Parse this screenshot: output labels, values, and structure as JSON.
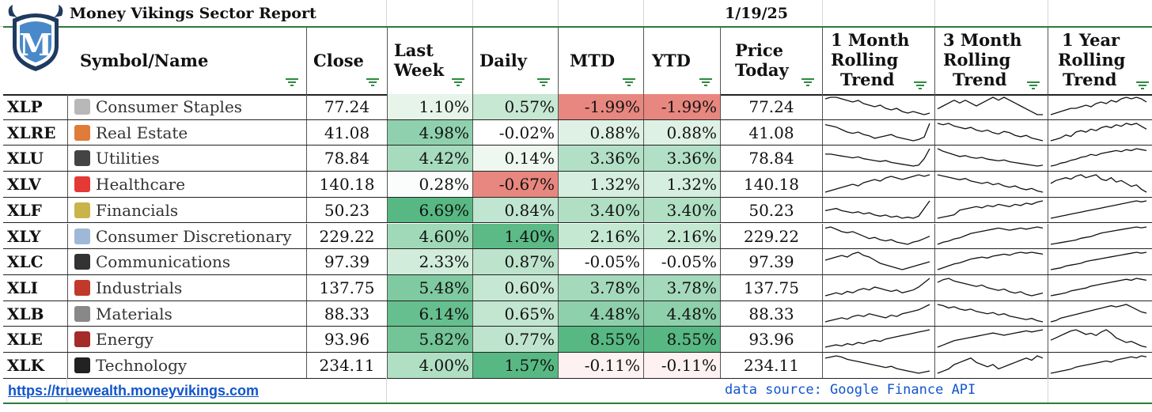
{
  "report": {
    "title": "Money Vikings Sector Report",
    "date": "1/19/25"
  },
  "logo": {
    "letter": "M",
    "colors": {
      "shield": "#1f3a5f",
      "accent": "#4a89c9"
    }
  },
  "headers": {
    "symbol_name": "Symbol/Name",
    "close": "Close",
    "last_week_1": "Last",
    "last_week_2": "Week",
    "daily": "Daily",
    "mtd": "MTD",
    "ytd": "YTD",
    "price_today_1": "Price",
    "price_today_2": "Today",
    "m1_1": "1 Month",
    "m1_2": "Rolling",
    "m1_3": "Trend",
    "m3_1": "3 Month",
    "m3_2": "Rolling",
    "m3_3": "Trend",
    "y1_1": "1 Year",
    "y1_2": "Rolling",
    "y1_3": "Trend"
  },
  "rows": [
    {
      "symbol": "XLP",
      "icon": "clipboard-icon",
      "name": "Consumer Staples",
      "close": "77.24",
      "last_week": "1.10%",
      "daily": "0.57%",
      "mtd": "-1.99%",
      "ytd": "-1.99%",
      "price": "77.24",
      "colors": {
        "lw": "#e6f4ea",
        "d": "#c7e8d3",
        "mtd": "#e8877f",
        "ytd": "#e8877f"
      },
      "trend1m": [
        6,
        5,
        5,
        6,
        7,
        8,
        7,
        9,
        10,
        11,
        10,
        12,
        13,
        12,
        14,
        15,
        14,
        15,
        16,
        15
      ],
      "trend3m": [
        12,
        11,
        10,
        9,
        10,
        9,
        10,
        11,
        10,
        9,
        8,
        9,
        8,
        9,
        10,
        11,
        12,
        13,
        14,
        14
      ],
      "trend1y": [
        16,
        15,
        14,
        13,
        12,
        12,
        11,
        10,
        11,
        9,
        8,
        9,
        7,
        8,
        6,
        5,
        6,
        5,
        6,
        8
      ]
    },
    {
      "symbol": "XLRE",
      "icon": "house-icon",
      "name": "Real Estate",
      "close": "41.08",
      "last_week": "4.98%",
      "daily": "-0.02%",
      "mtd": "0.88%",
      "ytd": "0.88%",
      "price": "41.08",
      "colors": {
        "lw": "#8fd1ae",
        "d": "#ffffff",
        "mtd": "#dff1e5",
        "ytd": "#dff1e5"
      },
      "trend1m": [
        6,
        7,
        8,
        10,
        12,
        13,
        12,
        14,
        15,
        17,
        16,
        15,
        14,
        16,
        17,
        18,
        19,
        18,
        16,
        5
      ],
      "trend3m": [
        6,
        7,
        6,
        8,
        9,
        10,
        9,
        11,
        12,
        11,
        13,
        14,
        12,
        13,
        15,
        16,
        15,
        17,
        18,
        19
      ],
      "trend1y": [
        18,
        17,
        16,
        14,
        15,
        12,
        11,
        12,
        10,
        11,
        9,
        8,
        9,
        7,
        8,
        6,
        7,
        6,
        8,
        10
      ]
    },
    {
      "symbol": "XLU",
      "icon": "plug-icon",
      "name": "Utilities",
      "close": "78.84",
      "last_week": "4.42%",
      "daily": "0.14%",
      "mtd": "3.36%",
      "ytd": "3.36%",
      "price": "78.84",
      "colors": {
        "lw": "#a6dbbe",
        "d": "#eef8f1",
        "mtd": "#b2e0c6",
        "ytd": "#b2e0c6"
      },
      "trend1m": [
        9,
        9,
        10,
        11,
        12,
        13,
        12,
        14,
        15,
        16,
        17,
        16,
        18,
        19,
        20,
        21,
        22,
        21,
        14,
        3
      ],
      "trend3m": [
        3,
        6,
        8,
        10,
        12,
        11,
        13,
        14,
        13,
        15,
        16,
        17,
        16,
        18,
        19,
        20,
        21,
        22,
        23,
        22
      ],
      "trend1y": [
        22,
        21,
        19,
        18,
        16,
        15,
        13,
        12,
        10,
        11,
        9,
        8,
        7,
        6,
        7,
        5,
        6,
        4,
        5,
        6
      ]
    },
    {
      "symbol": "XLV",
      "icon": "pill-icon",
      "name": "Healthcare",
      "close": "140.18",
      "last_week": "0.28%",
      "daily": "-0.67%",
      "mtd": "1.32%",
      "ytd": "1.32%",
      "price": "140.18",
      "colors": {
        "lw": "#fafdfb",
        "d": "#e8877f",
        "mtd": "#d6eedf",
        "ytd": "#d6eedf"
      },
      "trend1m": [
        17,
        16,
        15,
        14,
        13,
        12,
        13,
        11,
        10,
        9,
        10,
        8,
        7,
        8,
        9,
        8,
        7,
        6,
        7,
        6
      ],
      "trend3m": [
        6,
        7,
        8,
        9,
        10,
        9,
        11,
        12,
        13,
        12,
        14,
        13,
        15,
        16,
        15,
        17,
        18,
        17,
        19,
        20
      ],
      "trend1y": [
        12,
        10,
        9,
        8,
        9,
        7,
        6,
        8,
        7,
        6,
        9,
        10,
        8,
        11,
        10,
        12,
        14,
        13,
        16,
        18
      ]
    },
    {
      "symbol": "XLF",
      "icon": "money-icon",
      "name": "Financials",
      "close": "50.23",
      "last_week": "6.69%",
      "daily": "0.84%",
      "mtd": "3.40%",
      "ytd": "3.40%",
      "price": "50.23",
      "colors": {
        "lw": "#57b883",
        "d": "#c0e5d0",
        "mtd": "#b0dfc4",
        "ytd": "#b0dfc4"
      },
      "trend1m": [
        14,
        13,
        12,
        14,
        15,
        16,
        15,
        17,
        16,
        18,
        19,
        18,
        20,
        19,
        21,
        20,
        21,
        19,
        12,
        5
      ],
      "trend3m": [
        21,
        20,
        19,
        18,
        14,
        13,
        12,
        11,
        12,
        10,
        11,
        9,
        10,
        11,
        9,
        10,
        8,
        9,
        7,
        6
      ],
      "trend1y": [
        22,
        21,
        20,
        19,
        18,
        17,
        16,
        15,
        14,
        13,
        12,
        11,
        10,
        9,
        8,
        7,
        6,
        5,
        6,
        5
      ]
    },
    {
      "symbol": "XLY",
      "icon": "ring-icon",
      "name": "Consumer Discretionary",
      "close": "229.22",
      "last_week": "4.60%",
      "daily": "1.40%",
      "mtd": "2.16%",
      "ytd": "2.16%",
      "price": "229.22",
      "colors": {
        "lw": "#a0d9b8",
        "d": "#5cba86",
        "mtd": "#c5e8d2",
        "ytd": "#c5e8d2"
      },
      "trend1m": [
        5,
        4,
        6,
        8,
        9,
        8,
        10,
        12,
        14,
        13,
        15,
        16,
        15,
        17,
        18,
        19,
        17,
        16,
        14,
        12
      ],
      "trend3m": [
        20,
        18,
        17,
        15,
        14,
        12,
        10,
        9,
        8,
        7,
        6,
        5,
        6,
        7,
        6,
        5,
        6,
        5,
        4,
        5
      ],
      "trend1y": [
        23,
        22,
        21,
        20,
        19,
        18,
        16,
        15,
        14,
        12,
        10,
        9,
        8,
        7,
        6,
        5,
        4,
        3,
        4,
        3
      ]
    },
    {
      "symbol": "XLC",
      "icon": "phone-icon",
      "name": "Communications",
      "close": "97.39",
      "last_week": "2.33%",
      "daily": "0.87%",
      "mtd": "-0.05%",
      "ytd": "-0.05%",
      "price": "97.39",
      "colors": {
        "lw": "#d2ecdc",
        "d": "#bde3cc",
        "mtd": "#ffffff",
        "ytd": "#ffffff"
      },
      "trend1m": [
        10,
        9,
        8,
        7,
        8,
        6,
        5,
        7,
        8,
        10,
        12,
        13,
        14,
        15,
        16,
        15,
        14,
        13,
        12,
        11
      ],
      "trend3m": [
        22,
        20,
        18,
        16,
        15,
        13,
        11,
        10,
        9,
        10,
        8,
        7,
        6,
        7,
        5,
        4,
        5,
        4,
        5,
        6
      ],
      "trend1y": [
        22,
        21,
        20,
        18,
        17,
        16,
        15,
        13,
        12,
        11,
        10,
        9,
        8,
        7,
        6,
        5,
        4,
        3,
        4,
        3
      ]
    },
    {
      "symbol": "XLI",
      "icon": "factory-icon",
      "name": "Industrials",
      "close": "137.75",
      "last_week": "5.48%",
      "daily": "0.60%",
      "mtd": "3.78%",
      "ytd": "3.78%",
      "price": "137.75",
      "colors": {
        "lw": "#7fcaa0",
        "d": "#c6e8d3",
        "mtd": "#a4d9bb",
        "ytd": "#a4d9bb"
      },
      "trend1m": [
        16,
        15,
        14,
        15,
        13,
        14,
        12,
        11,
        12,
        10,
        11,
        12,
        13,
        12,
        14,
        13,
        12,
        10,
        7,
        4
      ],
      "trend3m": [
        8,
        6,
        5,
        7,
        8,
        9,
        10,
        11,
        10,
        12,
        13,
        14,
        13,
        15,
        16,
        15,
        17,
        18,
        17,
        16
      ],
      "trend1y": [
        22,
        21,
        20,
        19,
        17,
        16,
        15,
        14,
        12,
        11,
        10,
        9,
        8,
        7,
        6,
        5,
        6,
        4,
        5,
        6
      ]
    },
    {
      "symbol": "XLB",
      "icon": "recycle-icon",
      "name": "Materials",
      "close": "88.33",
      "last_week": "6.14%",
      "daily": "0.65%",
      "mtd": "4.48%",
      "ytd": "4.48%",
      "price": "88.33",
      "colors": {
        "lw": "#66bf8e",
        "d": "#c2e6d0",
        "mtd": "#8ed0ab",
        "ytd": "#8ed0ab"
      },
      "trend1m": [
        18,
        17,
        16,
        15,
        16,
        14,
        13,
        14,
        12,
        13,
        14,
        15,
        13,
        14,
        12,
        11,
        10,
        9,
        7,
        5
      ],
      "trend3m": [
        5,
        6,
        8,
        7,
        9,
        10,
        9,
        11,
        12,
        13,
        12,
        14,
        13,
        15,
        16,
        17,
        18,
        17,
        19,
        20
      ],
      "trend1y": [
        20,
        19,
        17,
        16,
        15,
        14,
        13,
        12,
        11,
        10,
        9,
        8,
        7,
        8,
        7,
        6,
        8,
        10,
        12,
        13
      ]
    },
    {
      "symbol": "XLE",
      "icon": "oil-barrel-icon",
      "name": "Energy",
      "close": "93.96",
      "last_week": "5.82%",
      "daily": "0.77%",
      "mtd": "8.55%",
      "ytd": "8.55%",
      "price": "93.96",
      "colors": {
        "lw": "#73c497",
        "d": "#bfe4cd",
        "mtd": "#57b883",
        "ytd": "#57b883"
      },
      "trend1m": [
        20,
        19,
        18,
        19,
        17,
        18,
        16,
        17,
        15,
        14,
        15,
        13,
        12,
        11,
        10,
        9,
        8,
        7,
        6,
        5
      ],
      "trend3m": [
        20,
        18,
        16,
        14,
        13,
        12,
        11,
        10,
        9,
        8,
        7,
        8,
        9,
        8,
        7,
        6,
        5,
        6,
        5,
        4
      ],
      "trend1y": [
        14,
        12,
        10,
        8,
        6,
        5,
        7,
        9,
        8,
        10,
        7,
        5,
        8,
        12,
        14,
        16,
        15,
        17,
        19,
        20
      ]
    },
    {
      "symbol": "XLK",
      "icon": "mobile-phone-icon",
      "name": "Technology",
      "close": "234.11",
      "last_week": "4.00%",
      "daily": "1.57%",
      "mtd": "-0.11%",
      "ytd": "-0.11%",
      "price": "234.11",
      "colors": {
        "lw": "#b0dfc4",
        "d": "#57b883",
        "mtd": "#fdf2f1",
        "ytd": "#fdf2f1"
      },
      "trend1m": [
        7,
        6,
        5,
        6,
        8,
        9,
        10,
        11,
        12,
        13,
        14,
        15,
        14,
        16,
        17,
        18,
        19,
        20,
        19,
        18
      ],
      "trend3m": [
        16,
        15,
        14,
        12,
        11,
        10,
        9,
        11,
        12,
        13,
        12,
        14,
        13,
        12,
        11,
        10,
        9,
        10,
        8,
        9
      ],
      "trend1y": [
        20,
        19,
        18,
        17,
        16,
        14,
        13,
        12,
        11,
        10,
        9,
        8,
        9,
        7,
        6,
        5,
        4,
        5,
        3,
        4
      ]
    }
  ],
  "footer": {
    "link": "https://truewealth.moneyvikings.com",
    "source": "data source: Google Finance API"
  }
}
